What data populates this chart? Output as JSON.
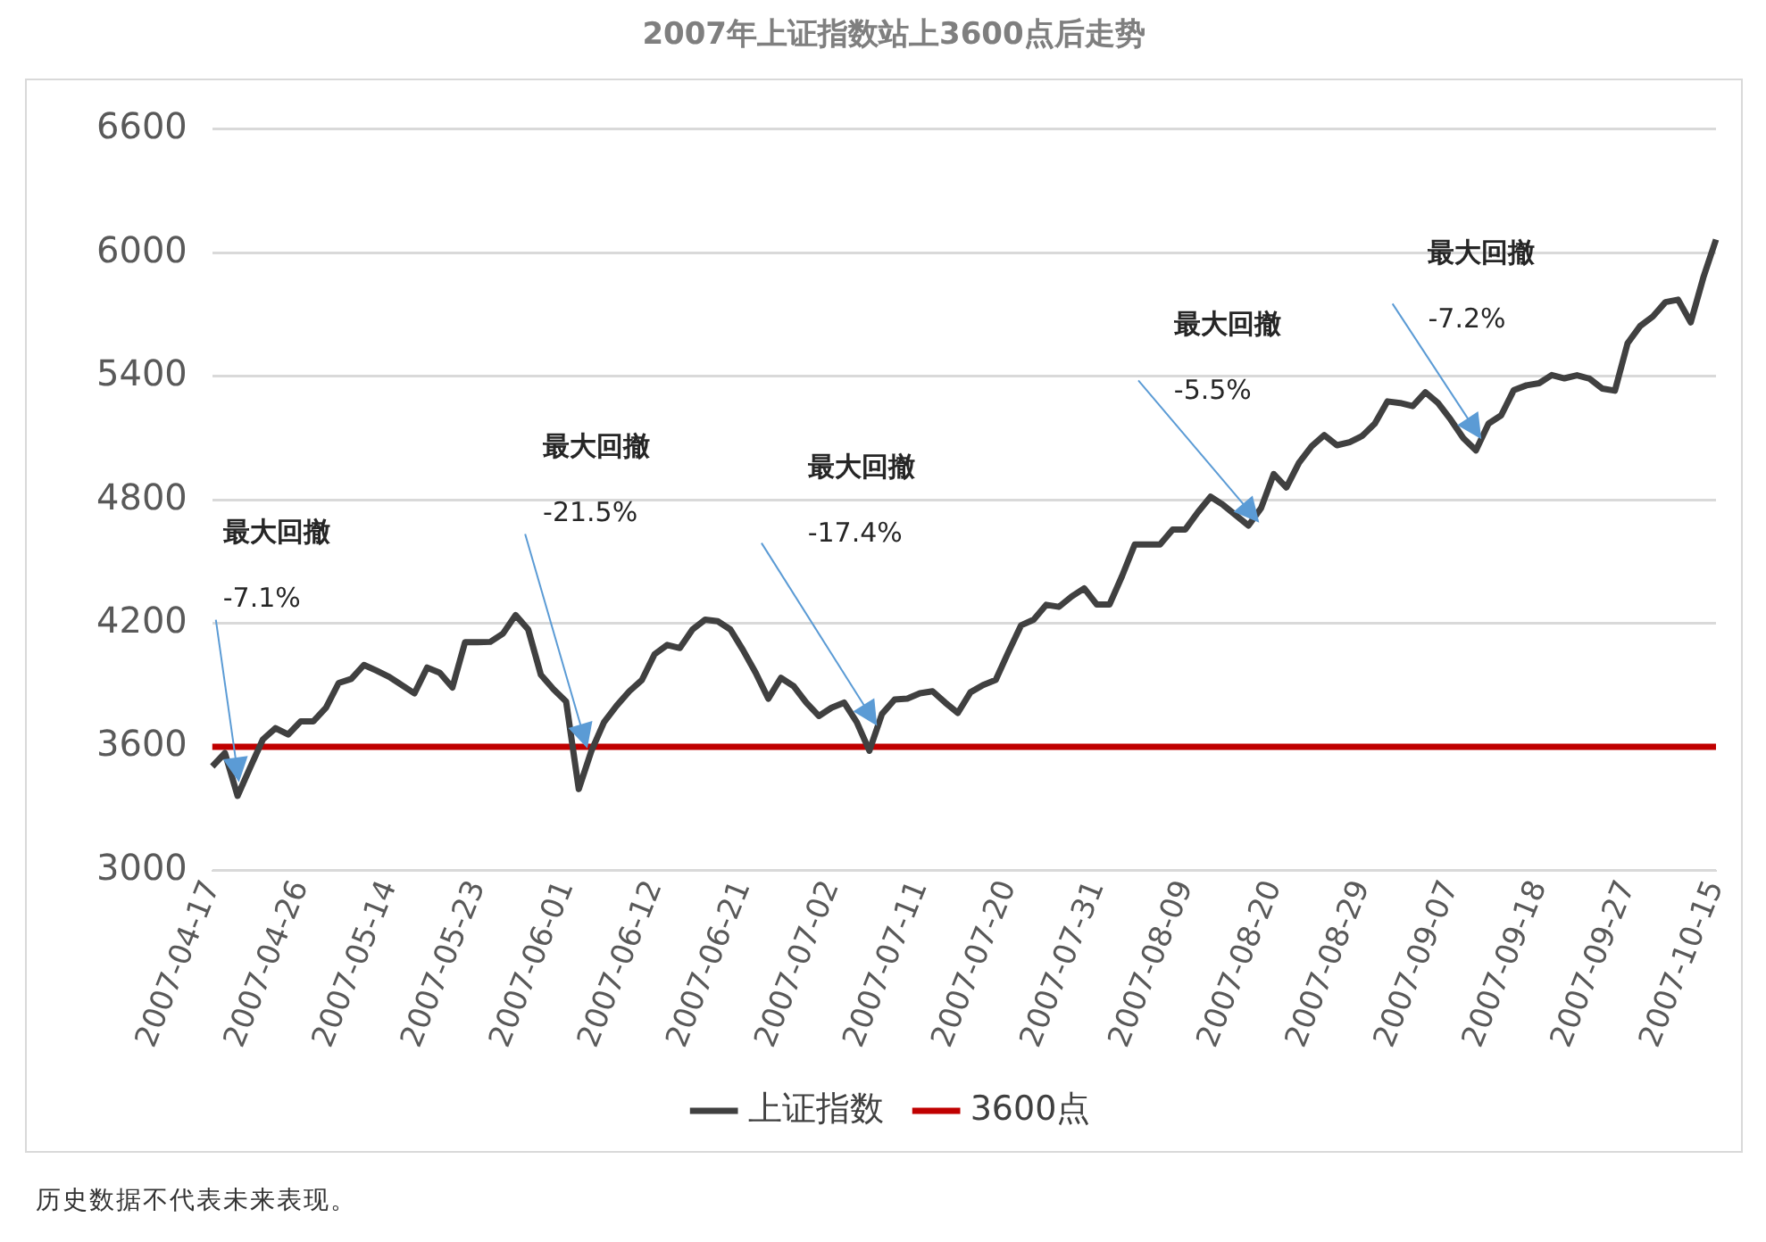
{
  "chart_data": {
    "type": "line",
    "title": "2007年上证指数站上3600点后走势",
    "categories": [
      "2007-04-17",
      null,
      null,
      null,
      null,
      null,
      null,
      "2007-04-26",
      null,
      null,
      null,
      null,
      null,
      null,
      "2007-05-14",
      null,
      null,
      null,
      null,
      null,
      null,
      "2007-05-23",
      null,
      null,
      null,
      null,
      null,
      null,
      "2007-06-01",
      null,
      null,
      null,
      null,
      null,
      null,
      "2007-06-12",
      null,
      null,
      null,
      null,
      null,
      null,
      "2007-06-21",
      null,
      null,
      null,
      null,
      null,
      null,
      "2007-07-02",
      null,
      null,
      null,
      null,
      null,
      null,
      "2007-07-11",
      null,
      null,
      null,
      null,
      null,
      null,
      "2007-07-20",
      null,
      null,
      null,
      null,
      null,
      null,
      "2007-07-31",
      null,
      null,
      null,
      null,
      null,
      null,
      "2007-08-09",
      null,
      null,
      null,
      null,
      null,
      null,
      "2007-08-20",
      null,
      null,
      null,
      null,
      null,
      null,
      "2007-08-29",
      null,
      null,
      null,
      null,
      null,
      null,
      "2007-09-07",
      null,
      null,
      null,
      null,
      null,
      null,
      "2007-09-18",
      null,
      null,
      null,
      null,
      null,
      null,
      "2007-09-27",
      null,
      null,
      null,
      null,
      null,
      null,
      "2007-10-15"
    ],
    "series": [
      {
        "name": "上证指数",
        "color": "#404040",
        "values": [
          3505,
          3570,
          3362,
          3500,
          3636,
          3691,
          3660,
          3724,
          3724,
          3790,
          3910,
          3930,
          3998,
          3970,
          3940,
          3900,
          3860,
          3985,
          3960,
          3888,
          4108,
          4108,
          4110,
          4150,
          4240,
          4170,
          3950,
          3880,
          3820,
          3395,
          3580,
          3720,
          3800,
          3870,
          3925,
          4050,
          4095,
          4080,
          4170,
          4218,
          4210,
          4170,
          4070,
          3960,
          3834,
          3935,
          3895,
          3815,
          3750,
          3790,
          3815,
          3720,
          3581,
          3760,
          3830,
          3834,
          3860,
          3870,
          3815,
          3765,
          3865,
          3900,
          3925,
          4060,
          4190,
          4218,
          4290,
          4280,
          4330,
          4370,
          4291,
          4291,
          4430,
          4583,
          4583,
          4583,
          4656,
          4656,
          4740,
          4815,
          4775,
          4725,
          4675,
          4760,
          4925,
          4860,
          4980,
          5060,
          5114,
          5065,
          5080,
          5110,
          5170,
          5278,
          5270,
          5255,
          5322,
          5270,
          5190,
          5100,
          5040,
          5170,
          5210,
          5333,
          5356,
          5366,
          5406,
          5390,
          5405,
          5388,
          5340,
          5330,
          5560,
          5644,
          5690,
          5760,
          5772,
          5662,
          5880,
          6064
        ]
      }
    ],
    "ref_lines": [
      {
        "axis": "y",
        "value": 3600,
        "label": "3600点",
        "color": "#c00000",
        "line_style": "solid"
      }
    ],
    "ylim": [
      3000,
      6600
    ],
    "yticks": [
      3000,
      3600,
      4200,
      4800,
      5400,
      6000,
      6600
    ],
    "grid": "y",
    "legend": "bottom",
    "marker": "none",
    "line_style": "solid",
    "annotations": [
      "最大回撤\n-7.1%",
      "最大回撤\n-21.5%",
      "最大回撤\n-17.4%",
      "最大回撤\n-5.5%",
      "最大回撤\n-7.2%",
      "历史数据不代表未来表现。"
    ]
  }
}
